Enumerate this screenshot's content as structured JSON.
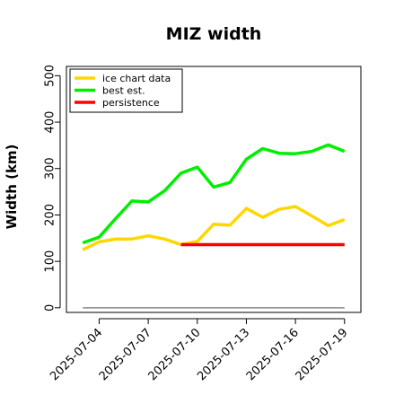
{
  "chart_data": {
    "type": "line",
    "title": "MIZ width",
    "xlabel": "",
    "ylabel": "Width (km)",
    "ylim": [
      -10,
      520
    ],
    "yticks": [
      0,
      100,
      200,
      300,
      400,
      500
    ],
    "xlim": [
      "2025-07-02",
      "2025-07-20"
    ],
    "xticks": [
      "2025-07-04",
      "2025-07-07",
      "2025-07-10",
      "2025-07-13",
      "2025-07-16",
      "2025-07-19"
    ],
    "grid": false,
    "legend_position": "top-left",
    "series": [
      {
        "name": "ice chart data",
        "color": "#FFD700",
        "x": [
          "2025-07-03",
          "2025-07-04",
          "2025-07-05",
          "2025-07-06",
          "2025-07-07",
          "2025-07-08",
          "2025-07-09",
          "2025-07-10",
          "2025-07-11",
          "2025-07-12",
          "2025-07-13",
          "2025-07-14",
          "2025-07-15",
          "2025-07-16",
          "2025-07-17",
          "2025-07-18",
          "2025-07-19"
        ],
        "values": [
          125,
          142,
          148,
          148,
          155,
          148,
          136,
          143,
          180,
          178,
          214,
          195,
          212,
          218,
          198,
          177,
          190
        ]
      },
      {
        "name": "best est.",
        "color": "#00EE00",
        "x": [
          "2025-07-03",
          "2025-07-04",
          "2025-07-05",
          "2025-07-06",
          "2025-07-07",
          "2025-07-08",
          "2025-07-09",
          "2025-07-10",
          "2025-07-11",
          "2025-07-12",
          "2025-07-13",
          "2025-07-14",
          "2025-07-15",
          "2025-07-16",
          "2025-07-17",
          "2025-07-18",
          "2025-07-19"
        ],
        "values": [
          140,
          152,
          192,
          230,
          228,
          252,
          290,
          303,
          260,
          270,
          320,
          343,
          333,
          332,
          337,
          351,
          337
        ]
      },
      {
        "name": "persistence",
        "color": "#FF0000",
        "x": [
          "2025-07-09",
          "2025-07-19"
        ],
        "values": [
          136,
          136
        ]
      }
    ],
    "reference_line": {
      "value": 0,
      "color": "#888888"
    }
  }
}
